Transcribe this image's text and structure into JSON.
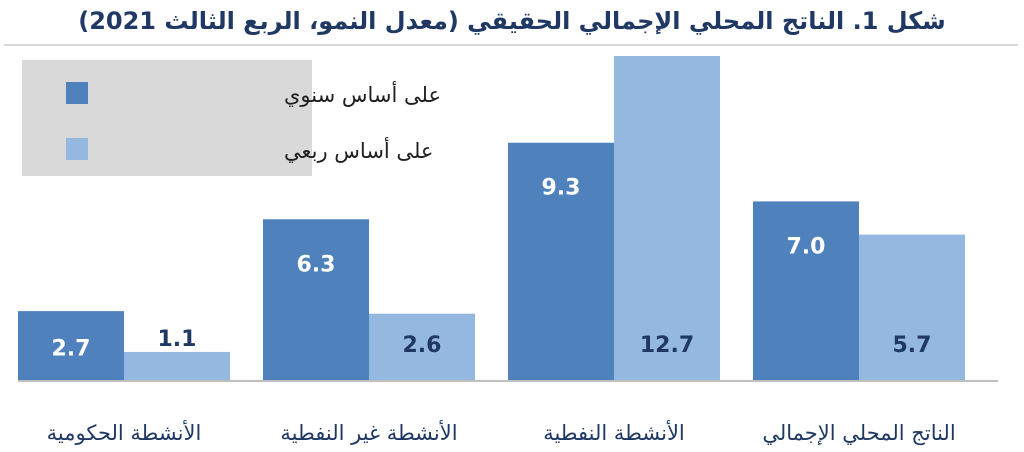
{
  "chart_data": {
    "type": "bar",
    "title": "شكل 1.  الناتج المحلي الإجمالي الحقيقي (معدل النمو، الربع الثالث 2021)",
    "categories": [
      "الأنشطة الحكومية",
      "الأنشطة غير النفطية",
      "الأنشطة النفطية",
      "الناتج المحلي الإجمالي"
    ],
    "series": [
      {
        "name": "على أساس سنوي",
        "values": [
          2.7,
          6.3,
          9.3,
          7.0
        ],
        "labels": [
          "2.7",
          "6.3",
          "9.3",
          "7.0"
        ],
        "color": "#4f81bd"
      },
      {
        "name": "على أساس ربعي",
        "values": [
          1.1,
          2.6,
          12.7,
          5.7
        ],
        "labels": [
          "1.1",
          "2.6",
          "12.7",
          "5.7"
        ],
        "color": "#95b8e0"
      }
    ],
    "ylim": [
      0,
      12.7
    ],
    "grid": false,
    "legend_position": "top-left",
    "legend_background": "#d9d9d9",
    "label_color_on_dark": "#ffffff",
    "label_color_on_light": "#1f3864",
    "category_label_color": "#1f3864"
  }
}
